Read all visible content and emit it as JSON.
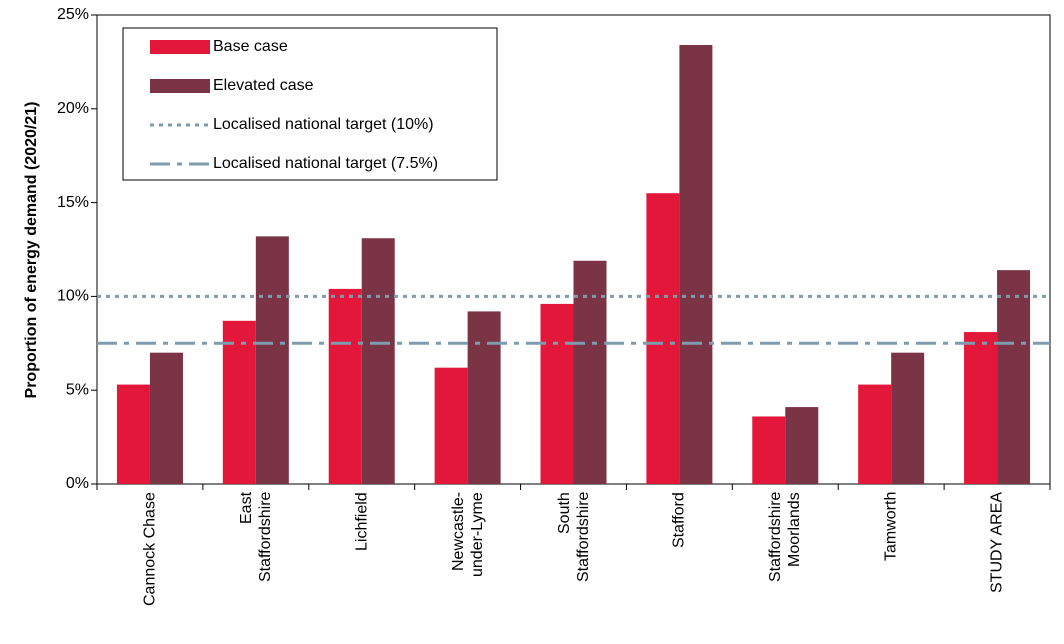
{
  "chart_data": {
    "type": "bar",
    "y_label": "Proportion of energy demand (2020/21)",
    "categories": [
      "Cannock Chase",
      "East\nStaffordshire",
      "Lichfield",
      "Newcastle-\nunder-Lyme",
      "South\nStaffordshire",
      "Stafford",
      "Staffordshire\nMoorlands",
      "Tamworth",
      "STUDY AREA"
    ],
    "series": [
      {
        "name": "Base case",
        "color": "#e3173a",
        "values": [
          5.3,
          8.7,
          10.4,
          6.2,
          9.6,
          15.5,
          3.6,
          5.3,
          8.1
        ]
      },
      {
        "name": "Elevated case",
        "color": "#7b3346",
        "values": [
          7.0,
          13.2,
          13.1,
          9.2,
          11.9,
          23.4,
          4.1,
          7.0,
          11.4
        ]
      }
    ],
    "reference_lines": [
      {
        "name": "Localised national target (10%)",
        "value": 10,
        "color": "#7f9cae",
        "style": "dotted"
      },
      {
        "name": "Localised national target (7.5%)",
        "value": 7.5,
        "color": "#7f9cae",
        "style": "dashdot"
      }
    ],
    "ylim": [
      0,
      25
    ],
    "yticks": [
      {
        "value": 0,
        "label": "0%"
      },
      {
        "value": 5,
        "label": "5%"
      },
      {
        "value": 10,
        "label": "10%"
      },
      {
        "value": 15,
        "label": "15%"
      },
      {
        "value": 20,
        "label": "20%"
      },
      {
        "value": 25,
        "label": "25%"
      }
    ],
    "legend": "upper left"
  }
}
